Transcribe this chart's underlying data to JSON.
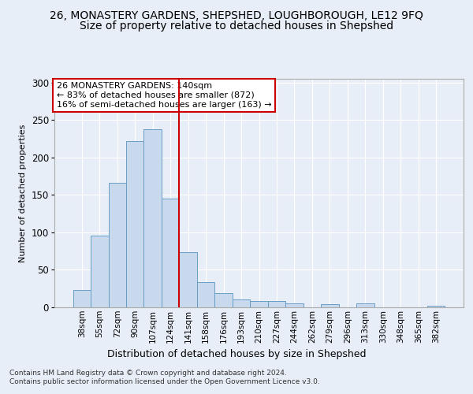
{
  "title": "26, MONASTERY GARDENS, SHEPSHED, LOUGHBOROUGH, LE12 9FQ",
  "subtitle": "Size of property relative to detached houses in Shepshed",
  "xlabel": "Distribution of detached houses by size in Shepshed",
  "ylabel": "Number of detached properties",
  "categories": [
    "38sqm",
    "55sqm",
    "72sqm",
    "90sqm",
    "107sqm",
    "124sqm",
    "141sqm",
    "158sqm",
    "176sqm",
    "193sqm",
    "210sqm",
    "227sqm",
    "244sqm",
    "262sqm",
    "279sqm",
    "296sqm",
    "313sqm",
    "330sqm",
    "348sqm",
    "365sqm",
    "382sqm"
  ],
  "values": [
    23,
    96,
    166,
    222,
    238,
    145,
    74,
    34,
    19,
    11,
    8,
    8,
    5,
    0,
    4,
    0,
    5,
    0,
    0,
    0,
    2
  ],
  "bar_color": "#c9d9ed",
  "bar_edge_color": "#6a9ec5",
  "vline_x": 6,
  "vline_color": "#cc0000",
  "annotation_text": "26 MONASTERY GARDENS: 140sqm\n← 83% of detached houses are smaller (872)\n16% of semi-detached houses are larger (163) →",
  "annotation_box_color": "#ffffff",
  "annotation_box_edge": "#cc0000",
  "footer1": "Contains HM Land Registry data © Crown copyright and database right 2024.",
  "footer2": "Contains public sector information licensed under the Open Government Licence v3.0.",
  "ylim": [
    0,
    305
  ],
  "yticks": [
    0,
    50,
    100,
    150,
    200,
    250,
    300
  ],
  "title_fontsize": 10,
  "subtitle_fontsize": 10,
  "background_color": "#e8eef7",
  "plot_background": "#e8eef7"
}
